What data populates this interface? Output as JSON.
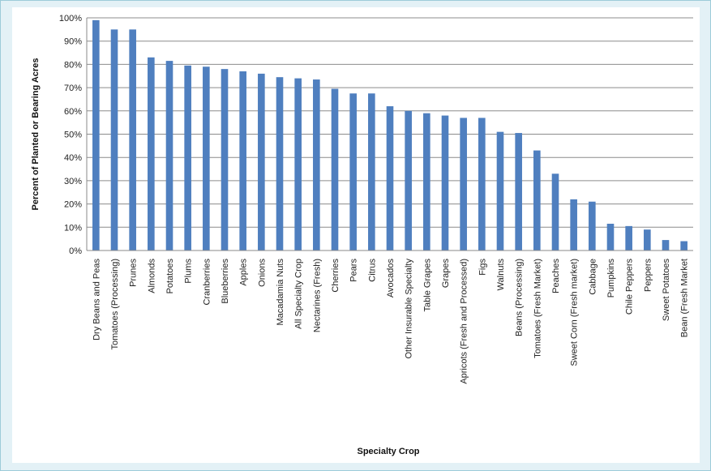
{
  "chart_data": {
    "type": "bar",
    "title": "",
    "xlabel": "Specialty Crop",
    "ylabel": "Percent of Planted or Bearing Acres",
    "ylim": [
      0,
      100
    ],
    "yticks": [
      "0%",
      "10%",
      "20%",
      "30%",
      "40%",
      "50%",
      "60%",
      "70%",
      "80%",
      "90%",
      "100%"
    ],
    "grid": true,
    "bar_color": "#4f7fbf",
    "categories": [
      "Dry Beans and Peas",
      "Tomatoes (Processing)",
      "Prunes",
      "Almonds",
      "Potatoes",
      "Plums",
      "Cranberries",
      "Blueberries",
      "Apples",
      "Onions",
      "Macadamia Nuts",
      "All Specialty Crop",
      "Nectarines (Fresh)",
      "Cherries",
      "Pears",
      "Citrus",
      "Avocados",
      "Other Insurable Specialty",
      "Table Grapes",
      "Grapes",
      "Apricots (Fresh and Processed)",
      "Figs",
      "Walnuts",
      "Beans (Processing)",
      "Tomatoes (Fresh Market)",
      "Peaches",
      "Sweet Corn (Fresh market)",
      "Cabbage",
      "Pumpkins",
      "Chile Peppers",
      "Peppers",
      "Sweet Potatoes",
      "Bean (Fresh Market"
    ],
    "values": [
      99,
      95,
      95,
      83,
      81.5,
      79.5,
      79,
      78,
      77,
      76,
      74.5,
      74,
      73.5,
      69.5,
      67.5,
      67.5,
      62,
      60,
      59,
      58,
      57,
      57,
      51,
      50.5,
      43,
      33,
      22,
      21,
      11.5,
      10.5,
      9,
      4.5,
      4
    ]
  }
}
